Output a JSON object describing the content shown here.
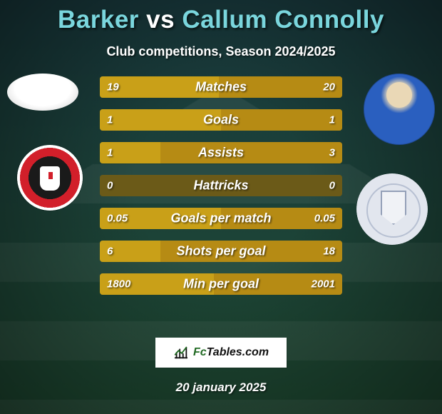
{
  "background": {
    "top_color": "#193a3e",
    "bottom_color": "#1f4a32",
    "vignette": "rgba(0,0,0,0.45)"
  },
  "title": {
    "p1": "Barker",
    "vs": "vs",
    "p2": "Callum Connolly"
  },
  "title_colors": {
    "p1": "#7ad6dd",
    "vs": "#ffffff",
    "p2": "#7ad6dd"
  },
  "subtitle": "Club competitions, Season 2024/2025",
  "bar_colors": {
    "left": "#c9a018",
    "right": "#b68b14",
    "track": "#6b5a18"
  },
  "rows": [
    {
      "label": "Matches",
      "left": "19",
      "right": "20",
      "lw": 49,
      "rw": 51
    },
    {
      "label": "Goals",
      "left": "1",
      "right": "1",
      "lw": 50,
      "rw": 50
    },
    {
      "label": "Assists",
      "left": "1",
      "right": "3",
      "lw": 25,
      "rw": 75
    },
    {
      "label": "Hattricks",
      "left": "0",
      "right": "0",
      "lw": 0,
      "rw": 0
    },
    {
      "label": "Goals per match",
      "left": "0.05",
      "right": "0.05",
      "lw": 50,
      "rw": 50
    },
    {
      "label": "Shots per goal",
      "left": "6",
      "right": "18",
      "lw": 25,
      "rw": 75
    },
    {
      "label": "Min per goal",
      "left": "1800",
      "right": "2001",
      "lw": 47,
      "rw": 53
    }
  ],
  "logo": {
    "fc": "Fc",
    "rest": "Tables.com"
  },
  "date": "20 january 2025"
}
